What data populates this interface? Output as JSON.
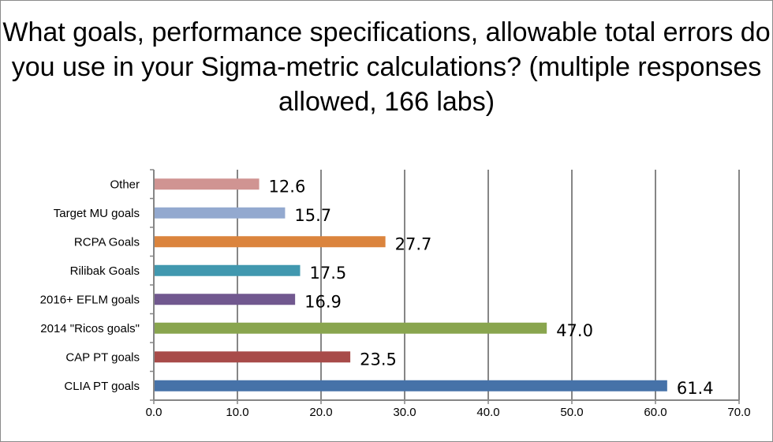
{
  "chart_data": {
    "type": "bar",
    "orientation": "horizontal",
    "title": "What goals, performance specifications, allowable total errors do you use in your Sigma-metric calculations? (multiple responses allowed, 166 labs)",
    "categories": [
      "CLIA PT goals",
      "CAP PT goals",
      "2014 \"Ricos goals\"",
      "2016+ EFLM goals",
      "Rilibak Goals",
      "RCPA Goals",
      "Target MU goals",
      "Other"
    ],
    "values": [
      61.4,
      23.5,
      47.0,
      16.9,
      17.5,
      27.7,
      15.7,
      12.6
    ],
    "data_labels": [
      "61.4",
      "23.5",
      "47.0",
      "16.9",
      "17.5",
      "27.7",
      "15.7",
      "12.6"
    ],
    "colors": [
      "#4672a8",
      "#a84b49",
      "#89a54e",
      "#71588f",
      "#4198af",
      "#db843d",
      "#93a9cf",
      "#d09492"
    ],
    "xlim": [
      0,
      70
    ],
    "xticks": [
      "0.0",
      "10.0",
      "20.0",
      "30.0",
      "40.0",
      "50.0",
      "60.0",
      "70.0"
    ],
    "grid": "vertical",
    "legend": "none",
    "xlabel": "",
    "ylabel": ""
  }
}
